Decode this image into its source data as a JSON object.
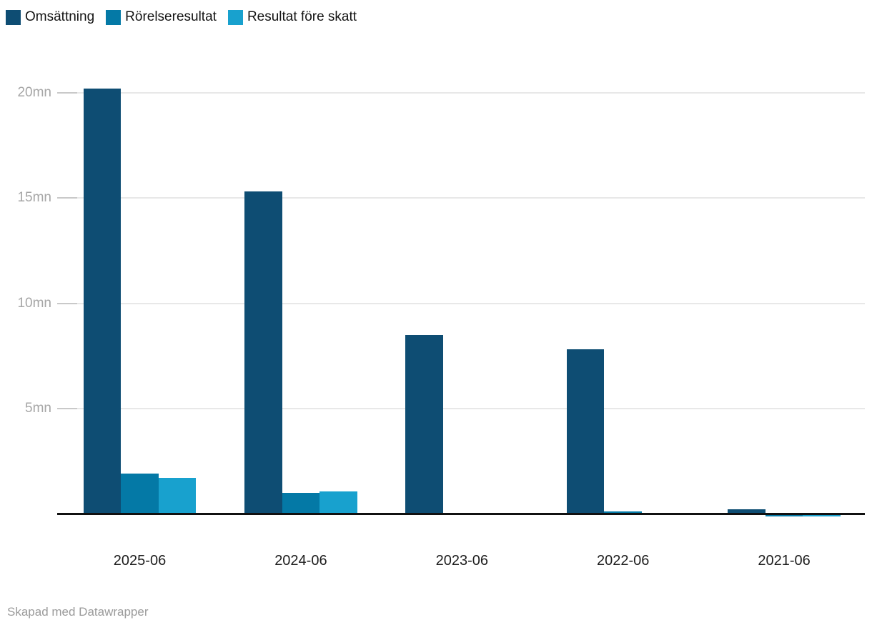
{
  "chart_data": {
    "type": "bar",
    "title": "",
    "xlabel": "",
    "ylabel": "",
    "categories": [
      "2025-06",
      "2024-06",
      "2023-06",
      "2022-06",
      "2021-06"
    ],
    "series": [
      {
        "name": "Omsättning",
        "color": "#0e4d73",
        "values": [
          20.2,
          15.3,
          8.5,
          7.8,
          0.2
        ]
      },
      {
        "name": "Rörelseresultat",
        "color": "#0479a6",
        "values": [
          1.9,
          1.0,
          0,
          0.1,
          -0.05
        ]
      },
      {
        "name": "Resultat före skatt",
        "color": "#18a1ce",
        "values": [
          1.7,
          1.05,
          0,
          0.05,
          -0.05
        ]
      }
    ],
    "ytick_values": [
      5,
      10,
      15,
      20
    ],
    "ytick_labels": [
      "5mn",
      "10mn",
      "15mn",
      "20mn"
    ],
    "ylim": [
      -0.1,
      20.5
    ],
    "grid": true,
    "legend_position": "top-left"
  },
  "colors": {
    "background": "#ffffff",
    "gridline": "#e8e8e8",
    "grid_tick": "#c9c9c9",
    "axis_line": "#111111",
    "ytick_text": "#a6a6a6",
    "xtick_text": "#1d1d1d",
    "legend_text": "#141414",
    "footer_text": "#9b9b9b"
  },
  "footer": {
    "credit": "Skapad med Datawrapper"
  }
}
